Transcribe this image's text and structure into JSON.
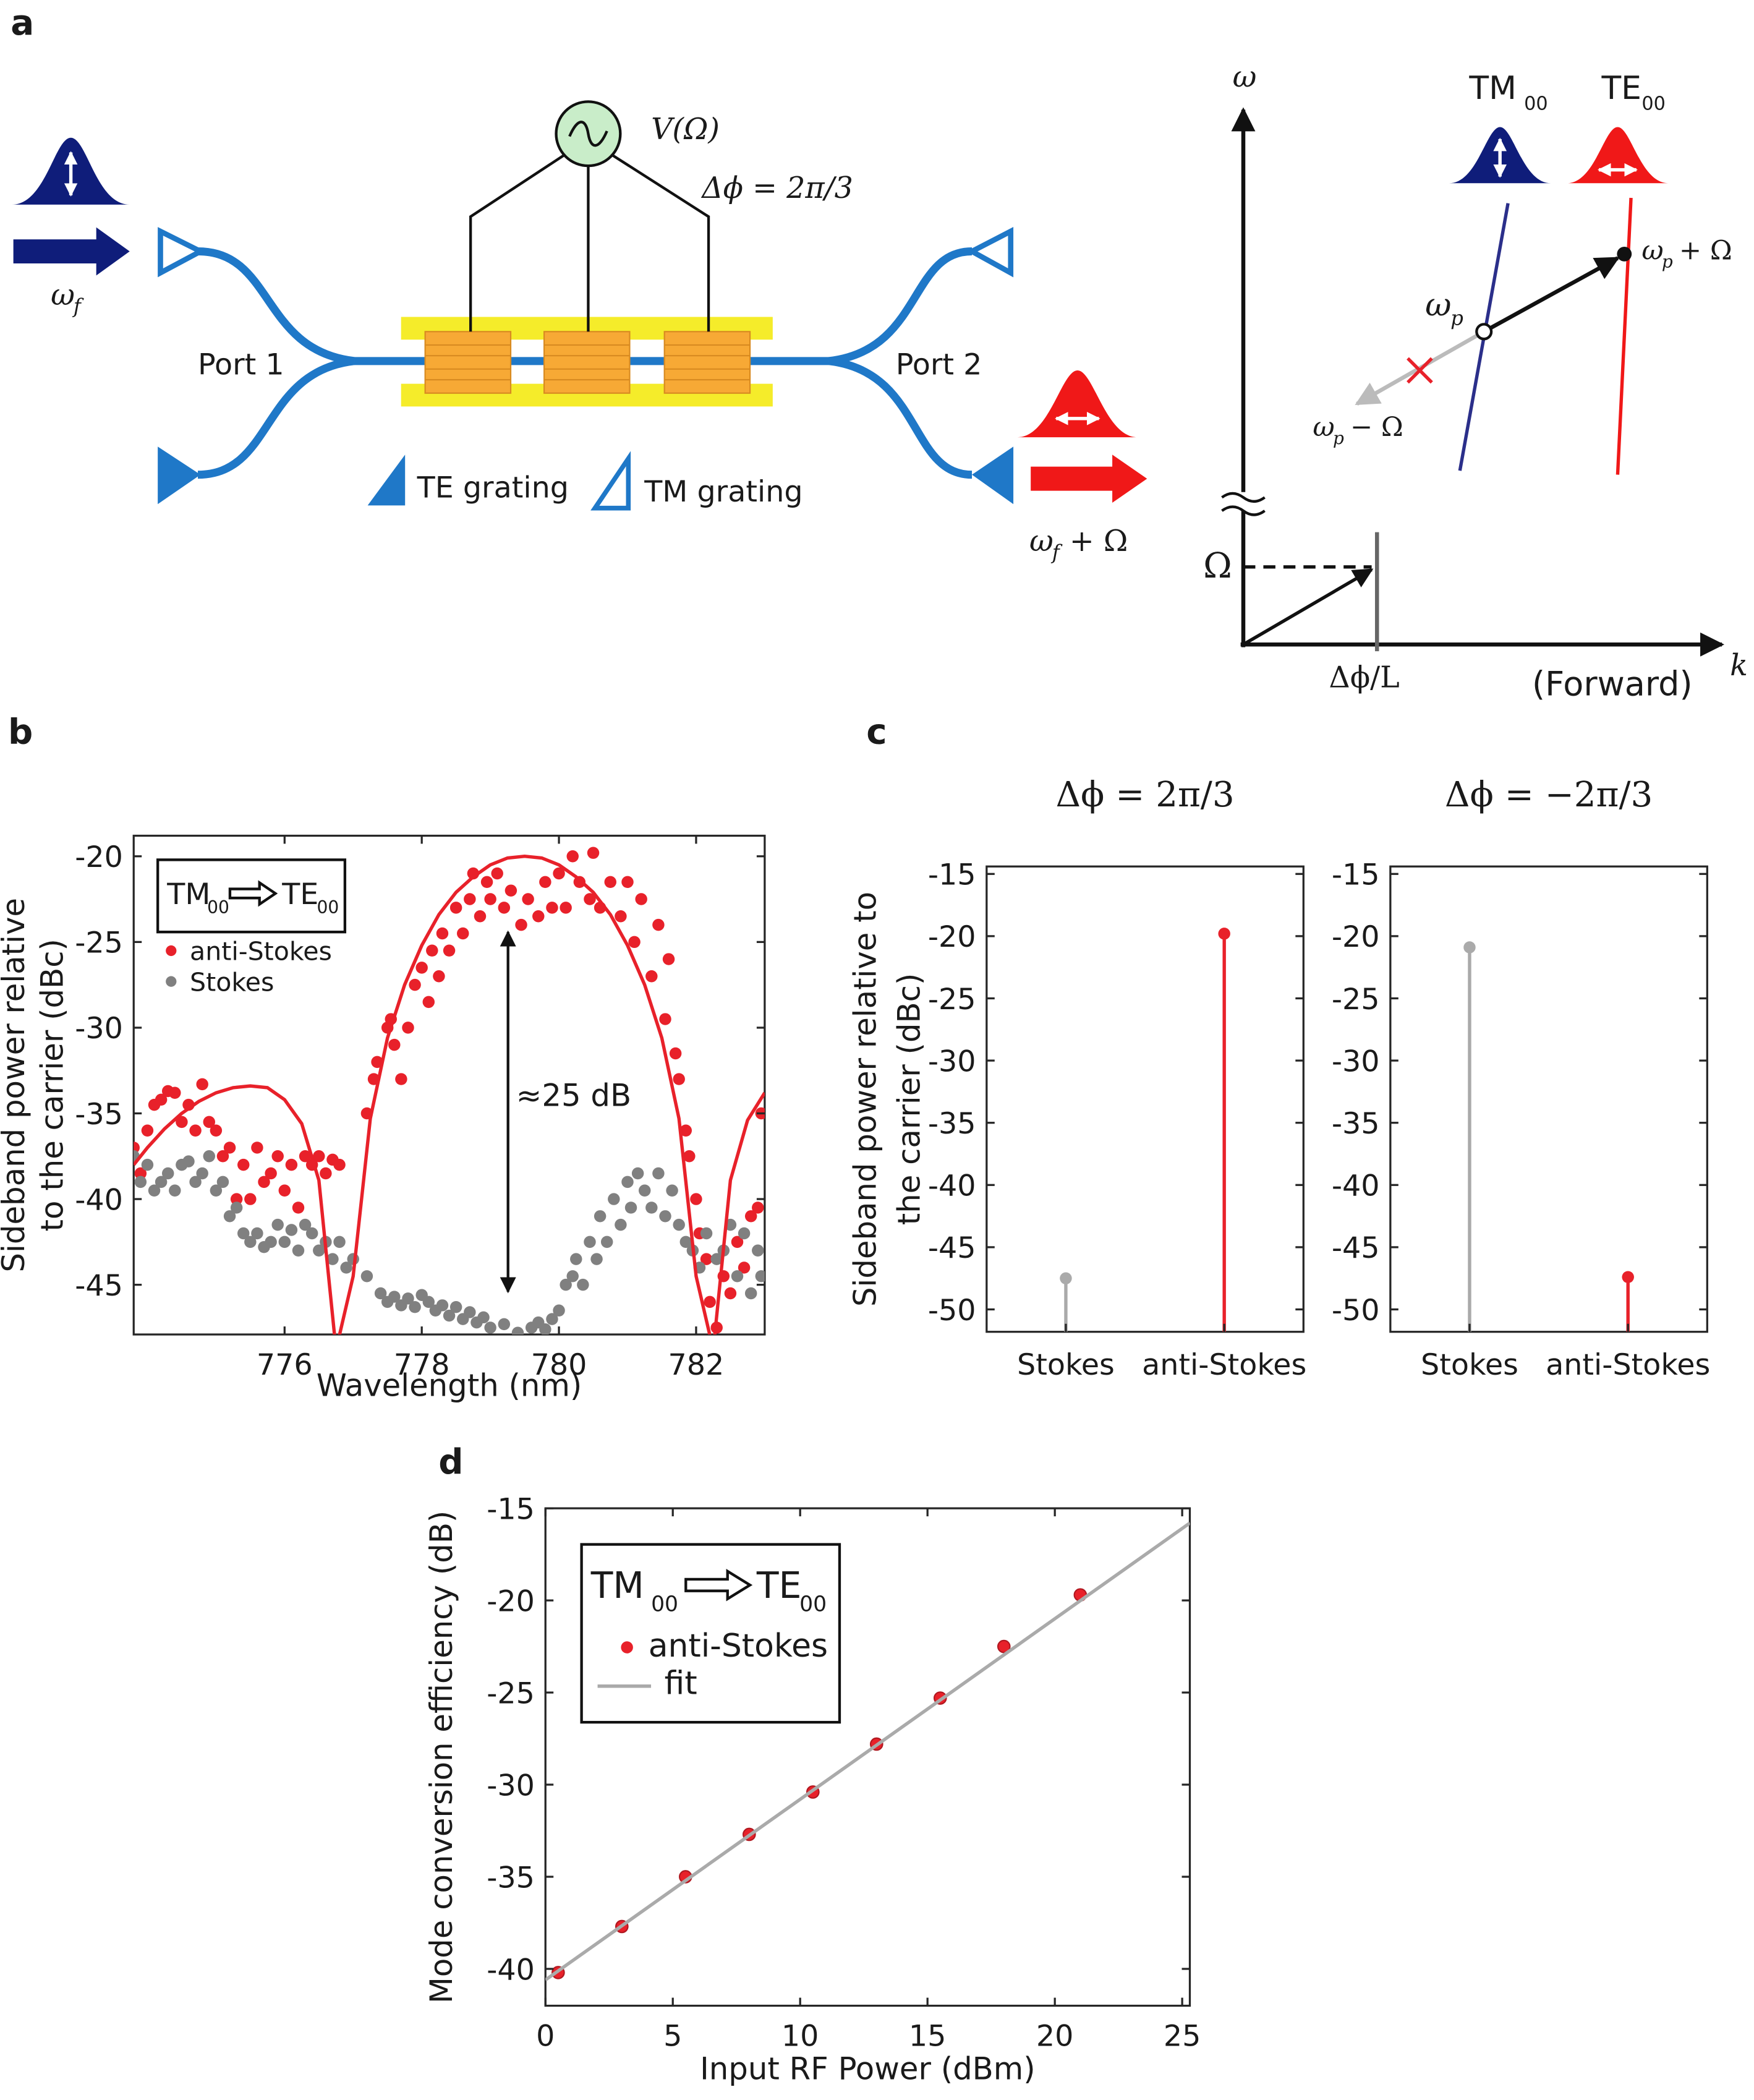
{
  "diagram": {
    "panel_label": "a",
    "input_freq": {
      "base": "ω",
      "sub": "f"
    },
    "port1": "Port 1",
    "port2": "Port 2",
    "source": "V(Ω)",
    "phase": "Δϕ = 2π/3",
    "te_grating": "TE grating",
    "tm_grating": "TM grating",
    "output_freq": {
      "base": "ω",
      "sub": "f",
      "rest": "+ Ω"
    },
    "dispersion": {
      "y_axis": "ω",
      "x_axis": "k",
      "tm_mode": {
        "base": "TM",
        "sub": "00"
      },
      "te_mode": {
        "base": "TE",
        "sub": "00"
      },
      "pump": {
        "base": "ω",
        "sub": "p"
      },
      "anti_stokes": {
        "base": "ω",
        "sub": "p",
        "rest": "+ Ω"
      },
      "stokes": {
        "base": "ω",
        "sub": "p",
        "rest": "− Ω"
      },
      "omega": "Ω",
      "wavevector": "Δϕ/L",
      "direction": "(Forward)"
    }
  },
  "chart_data": [
    {
      "type": "scatter",
      "panel_label": "b",
      "xlabel": "Wavelength (nm)",
      "ylabel": [
        "Sideband power relative",
        "to the carrier (dBc)"
      ],
      "annotation": "≈25 dB",
      "legend": "upper left",
      "legend_title": {
        "from": "TM",
        "from_sub": "00",
        "to": "TE",
        "to_sub": "00"
      },
      "xlim": [
        773.8,
        783
      ],
      "ylim": [
        -47.9,
        -18.8
      ],
      "xticks": [
        776,
        778,
        780,
        782
      ],
      "yticks": [
        -45,
        -40,
        -35,
        -30,
        -25,
        -20
      ],
      "grid": false,
      "series": [
        {
          "name": "anti-Stokes",
          "color": "#e8212a",
          "mode": "markers",
          "x": [
            773.8,
            773.9,
            774.0,
            774.1,
            774.2,
            774.3,
            774.4,
            774.5,
            774.6,
            774.7,
            774.8,
            774.9,
            775.0,
            775.1,
            775.2,
            775.3,
            775.4,
            775.5,
            775.6,
            775.7,
            775.8,
            775.9,
            776.0,
            776.1,
            776.2,
            776.3,
            776.4,
            776.5,
            776.6,
            776.7,
            776.8,
            777.2,
            777.3,
            777.35,
            777.5,
            777.55,
            777.6,
            777.7,
            777.8,
            777.9,
            778.0,
            778.1,
            778.15,
            778.25,
            778.3,
            778.4,
            778.5,
            778.6,
            778.7,
            778.75,
            778.85,
            778.95,
            779.0,
            779.1,
            779.2,
            779.3,
            779.45,
            779.55,
            779.7,
            779.8,
            779.9,
            780.0,
            780.1,
            780.2,
            780.3,
            780.45,
            780.5,
            780.6,
            780.75,
            780.9,
            781.0,
            781.1,
            781.2,
            781.35,
            781.45,
            781.55,
            781.6,
            781.7,
            781.75,
            781.85,
            781.9,
            782.0,
            782.05,
            782.15,
            782.2,
            782.3,
            782.4,
            782.5,
            782.6,
            782.7,
            782.8,
            782.9,
            782.95
          ],
          "values": [
            -37.0,
            -38.5,
            -36.0,
            -34.5,
            -34.2,
            -33.7,
            -33.8,
            -35.5,
            -34.5,
            -36.0,
            -33.3,
            -35.5,
            -36.0,
            -37.5,
            -37.0,
            -40.0,
            -38.0,
            -40.0,
            -37.0,
            -39.0,
            -38.5,
            -37.5,
            -39.5,
            -38.0,
            -40.5,
            -37.5,
            -38.0,
            -37.5,
            -38.5,
            -37.7,
            -38.0,
            -35.0,
            -33.0,
            -32.0,
            -30.0,
            -29.5,
            -31.0,
            -33.0,
            -30.0,
            -27.5,
            -26.5,
            -28.5,
            -25.5,
            -27.0,
            -24.5,
            -25.5,
            -23.0,
            -24.5,
            -22.5,
            -21.0,
            -23.5,
            -21.5,
            -22.5,
            -21.0,
            -23.0,
            -22.0,
            -24.0,
            -22.5,
            -23.5,
            -21.5,
            -23.0,
            -21.0,
            -23.0,
            -20.0,
            -21.5,
            -22.5,
            -19.8,
            -23.0,
            -21.5,
            -23.5,
            -21.5,
            -25.0,
            -22.5,
            -27.0,
            -24.0,
            -29.5,
            -26.0,
            -31.5,
            -33.0,
            -36.0,
            -37.5,
            -40.0,
            -42.0,
            -43.5,
            -46.0,
            -47.5,
            -44.5,
            -45.5,
            -42.5,
            -44.0,
            -41.0,
            -40.5,
            -35.0
          ]
        },
        {
          "name": "Stokes",
          "color": "#808080",
          "mode": "markers",
          "x": [
            773.8,
            773.9,
            774.0,
            774.1,
            774.2,
            774.3,
            774.4,
            774.5,
            774.6,
            774.7,
            774.8,
            774.9,
            775.0,
            775.1,
            775.2,
            775.3,
            775.4,
            775.5,
            775.6,
            775.7,
            775.8,
            775.9,
            776.0,
            776.1,
            776.2,
            776.3,
            776.4,
            776.5,
            776.6,
            776.7,
            776.8,
            776.9,
            777.0,
            777.2,
            777.4,
            777.5,
            777.6,
            777.7,
            777.8,
            777.9,
            778.0,
            778.1,
            778.2,
            778.3,
            778.4,
            778.5,
            778.6,
            778.7,
            778.8,
            778.9,
            779.0,
            779.2,
            779.4,
            779.6,
            779.7,
            779.8,
            779.9,
            780.0,
            780.1,
            780.2,
            780.25,
            780.35,
            780.45,
            780.55,
            780.6,
            780.7,
            780.8,
            780.9,
            781.0,
            781.05,
            781.15,
            781.25,
            781.35,
            781.45,
            781.55,
            781.65,
            781.75,
            781.85,
            781.95,
            782.05,
            782.15,
            782.3,
            782.4,
            782.5,
            782.6,
            782.7,
            782.8,
            782.9,
            782.95
          ],
          "values": [
            -37.5,
            -39.0,
            -38.0,
            -39.5,
            -39.0,
            -38.5,
            -39.5,
            -38.0,
            -37.8,
            -39.0,
            -38.5,
            -37.5,
            -39.5,
            -39.0,
            -41.0,
            -40.5,
            -42.0,
            -42.5,
            -42.0,
            -42.8,
            -42.5,
            -41.5,
            -42.5,
            -41.8,
            -43.0,
            -41.5,
            -42.0,
            -43.0,
            -42.5,
            -43.5,
            -42.5,
            -44.0,
            -43.5,
            -44.5,
            -45.5,
            -46.0,
            -45.7,
            -46.2,
            -45.8,
            -46.3,
            -45.6,
            -46.0,
            -46.5,
            -46.2,
            -46.8,
            -46.3,
            -47.0,
            -46.6,
            -47.2,
            -46.9,
            -47.5,
            -47.3,
            -47.8,
            -47.5,
            -47.2,
            -47.6,
            -47.0,
            -46.5,
            -45.0,
            -44.5,
            -43.5,
            -45.0,
            -42.5,
            -43.5,
            -41.0,
            -42.5,
            -40.0,
            -41.5,
            -39.0,
            -40.5,
            -38.5,
            -39.5,
            -40.5,
            -38.5,
            -41.0,
            -39.5,
            -41.5,
            -42.5,
            -43.0,
            -44.0,
            -42.0,
            -43.5,
            -43.0,
            -41.5,
            -44.5,
            -42.0,
            -45.5,
            -43.0,
            -44.5
          ]
        },
        {
          "color": "#e8212a",
          "mode": "line",
          "x": [
            773.8,
            774.0,
            774.25,
            774.5,
            774.75,
            775.0,
            775.25,
            775.5,
            775.75,
            776.0,
            776.25,
            776.5,
            776.75,
            777.0,
            777.25,
            777.5,
            777.75,
            778.0,
            778.25,
            778.5,
            778.75,
            779.0,
            779.25,
            779.5,
            779.75,
            780.0,
            780.25,
            780.5,
            780.75,
            781.0,
            781.25,
            781.5,
            781.75,
            782.0,
            782.25,
            782.5,
            782.75,
            783.0
          ],
          "values": [
            -38.0,
            -37.0,
            -35.9,
            -35.0,
            -34.3,
            -33.8,
            -33.5,
            -33.4,
            -33.5,
            -34.2,
            -35.6,
            -38.9,
            -48.8,
            -44.5,
            -35.3,
            -30.6,
            -27.5,
            -25.2,
            -23.4,
            -22.1,
            -21.2,
            -20.5,
            -20.1,
            -20.0,
            -20.1,
            -20.5,
            -21.2,
            -22.1,
            -23.4,
            -25.2,
            -27.5,
            -30.6,
            -35.3,
            -44.5,
            -48.8,
            -38.9,
            -35.4,
            -33.8
          ]
        }
      ]
    },
    {
      "type": "stem",
      "panel_label": "c",
      "title": "Δϕ = 2π/3",
      "ylabel": [
        "Sideband power relative to",
        "the carrier (dBc)"
      ],
      "categories": [
        "Stokes",
        "anti-Stokes"
      ],
      "values": [
        -47.5,
        -19.8
      ],
      "colors": [
        "#aaaaaa",
        "#e8212a"
      ],
      "ylim": [
        -51.8,
        -14.4
      ],
      "yticks": [
        -50,
        -45,
        -40,
        -35,
        -30,
        -25,
        -20,
        -15
      ],
      "grid": false
    },
    {
      "type": "stem",
      "title": "Δϕ = −2π/3",
      "categories": [
        "Stokes",
        "anti-Stokes"
      ],
      "values": [
        -20.9,
        -47.4
      ],
      "colors": [
        "#aaaaaa",
        "#e8212a"
      ],
      "ylim": [
        -51.8,
        -14.4
      ],
      "yticks": [
        -50,
        -45,
        -40,
        -35,
        -30,
        -25,
        -20,
        -15
      ],
      "grid": false
    },
    {
      "type": "scatter",
      "panel_label": "d",
      "xlabel": "Input RF Power (dBm)",
      "ylabel": [
        "Mode conversion efficiency (dB)"
      ],
      "legend": "upper left",
      "legend_title": {
        "from": "TM",
        "from_sub": "00",
        "to": "TE",
        "to_sub": "00"
      },
      "xlim": [
        0,
        25.3
      ],
      "ylim": [
        -42,
        -15
      ],
      "xticks": [
        0,
        5,
        10,
        15,
        20,
        25
      ],
      "yticks": [
        -40,
        -35,
        -30,
        -25,
        -20,
        -15
      ],
      "grid": false,
      "series": [
        {
          "name": "anti-Stokes",
          "color": "#e8212a",
          "mode": "markers",
          "x": [
            0.5,
            3,
            5.5,
            8,
            10.5,
            13,
            15.5,
            18,
            21
          ],
          "values": [
            -40.2,
            -37.7,
            -35.0,
            -32.7,
            -30.4,
            -27.8,
            -25.3,
            -22.5,
            -19.7
          ]
        },
        {
          "name": "fit",
          "color": "#aaaaaa",
          "mode": "line",
          "x": [
            0,
            25.3
          ],
          "values": [
            -40.6,
            -15.8
          ]
        }
      ]
    }
  ]
}
